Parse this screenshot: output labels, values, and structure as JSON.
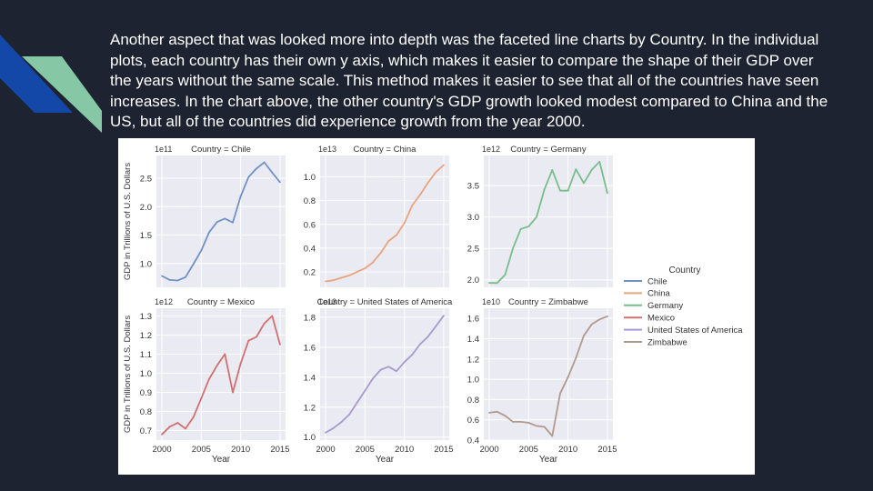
{
  "slide": {
    "paragraph": "Another aspect that was looked more into depth was the faceted line charts by Country. In the individual plots, each country has their own y axis, which makes it easier to compare the shape of their GDP over the years without the same scale. This method makes it easier to see that all of the countries have seen increases. In the chart above, the other country's GDP growth looked modest compared to China and the US, but all of the countries did experience growth from the year 2000."
  },
  "decor": {
    "stripe_colors": [
      "#1347a8",
      "#86c7a6"
    ]
  },
  "chart_data": {
    "type": "line",
    "facet_by": "Country",
    "layout": "2 rows x 3 columns, shared x axis",
    "ylabel": "GDP in Trillions of U.S. Dollars",
    "xlabel": "Year",
    "x_ticks": [
      2000,
      2005,
      2010,
      2015
    ],
    "x_range": [
      1999.3,
      2015.7
    ],
    "legend": {
      "title": "Country",
      "position": "right",
      "entries": [
        "Chile",
        "China",
        "Germany",
        "Mexico",
        "United States of America",
        "Zimbabwe"
      ]
    },
    "grid": true,
    "facets": [
      {
        "title": "Country = Chile",
        "exponent": "1e11",
        "color": "#7092c4",
        "ylim": [
          0.58,
          2.9
        ],
        "yticks": [
          "1.0",
          "1.5",
          "2.0",
          "2.5"
        ],
        "ytick_values": [
          1.0,
          1.5,
          2.0,
          2.5
        ],
        "x": [
          2000,
          2001,
          2002,
          2003,
          2004,
          2005,
          2006,
          2007,
          2008,
          2009,
          2010,
          2011,
          2012,
          2013,
          2014,
          2015
        ],
        "y": [
          0.78,
          0.71,
          0.7,
          0.76,
          0.99,
          1.23,
          1.55,
          1.73,
          1.79,
          1.72,
          2.18,
          2.52,
          2.67,
          2.78,
          2.6,
          2.43
        ]
      },
      {
        "title": "Country = China",
        "exponent": "1e13",
        "color": "#e8a47e",
        "ylim": [
          0.07,
          1.18
        ],
        "yticks": [
          "0.2",
          "0.4",
          "0.6",
          "0.8",
          "1.0"
        ],
        "ytick_values": [
          0.2,
          0.4,
          0.6,
          0.8,
          1.0
        ],
        "x": [
          2000,
          2001,
          2002,
          2003,
          2004,
          2005,
          2006,
          2007,
          2008,
          2009,
          2010,
          2011,
          2012,
          2013,
          2014,
          2015
        ],
        "y": [
          0.12,
          0.13,
          0.15,
          0.17,
          0.2,
          0.23,
          0.28,
          0.36,
          0.46,
          0.51,
          0.61,
          0.76,
          0.85,
          0.95,
          1.04,
          1.1
        ]
      },
      {
        "title": "Country = Germany",
        "exponent": "1e12",
        "color": "#78be8c",
        "ylim": [
          1.88,
          3.98
        ],
        "yticks": [
          "2.0",
          "2.5",
          "3.0",
          "3.5"
        ],
        "ytick_values": [
          2.0,
          2.5,
          3.0,
          3.5
        ],
        "x": [
          2000,
          2001,
          2002,
          2003,
          2004,
          2005,
          2006,
          2007,
          2008,
          2009,
          2010,
          2011,
          2012,
          2013,
          2014,
          2015
        ],
        "y": [
          1.95,
          1.95,
          2.08,
          2.5,
          2.81,
          2.85,
          3.0,
          3.44,
          3.75,
          3.42,
          3.42,
          3.76,
          3.54,
          3.75,
          3.88,
          3.38
        ]
      },
      {
        "title": "Country = Mexico",
        "exponent": "1e12",
        "color": "#d07070",
        "ylim": [
          0.65,
          1.34
        ],
        "yticks": [
          "0.7",
          "0.8",
          "0.9",
          "1.0",
          "1.1",
          "1.2",
          "1.3"
        ],
        "ytick_values": [
          0.7,
          0.8,
          0.9,
          1.0,
          1.1,
          1.2,
          1.3
        ],
        "x": [
          2000,
          2001,
          2002,
          2003,
          2004,
          2005,
          2006,
          2007,
          2008,
          2009,
          2010,
          2011,
          2012,
          2013,
          2014,
          2015
        ],
        "y": [
          0.68,
          0.72,
          0.74,
          0.71,
          0.77,
          0.87,
          0.97,
          1.04,
          1.1,
          0.9,
          1.05,
          1.17,
          1.19,
          1.26,
          1.3,
          1.15
        ]
      },
      {
        "title": "Country = United States of America",
        "exponent": "1e13",
        "color": "#a79ad0",
        "ylim": [
          0.98,
          1.86
        ],
        "yticks": [
          "1.0",
          "1.2",
          "1.4",
          "1.6",
          "1.8"
        ],
        "ytick_values": [
          1.0,
          1.2,
          1.4,
          1.6,
          1.8
        ],
        "x": [
          2000,
          2001,
          2002,
          2003,
          2004,
          2005,
          2006,
          2007,
          2008,
          2009,
          2010,
          2011,
          2012,
          2013,
          2014,
          2015
        ],
        "y": [
          1.03,
          1.06,
          1.1,
          1.15,
          1.23,
          1.31,
          1.39,
          1.45,
          1.47,
          1.44,
          1.5,
          1.55,
          1.62,
          1.67,
          1.74,
          1.81
        ]
      },
      {
        "title": "Country = Zimbabwe",
        "exponent": "1e10",
        "color": "#b09a8e",
        "ylim": [
          0.4,
          1.7
        ],
        "yticks": [
          "0.4",
          "0.6",
          "0.8",
          "1.0",
          "1.2",
          "1.4",
          "1.6"
        ],
        "ytick_values": [
          0.4,
          0.6,
          0.8,
          1.0,
          1.2,
          1.4,
          1.6
        ],
        "x": [
          2000,
          2001,
          2002,
          2003,
          2004,
          2005,
          2006,
          2007,
          2008,
          2009,
          2010,
          2011,
          2012,
          2013,
          2014,
          2015
        ],
        "y": [
          0.67,
          0.68,
          0.64,
          0.58,
          0.58,
          0.57,
          0.54,
          0.53,
          0.44,
          0.86,
          1.02,
          1.21,
          1.43,
          1.54,
          1.59,
          1.62
        ]
      }
    ]
  }
}
